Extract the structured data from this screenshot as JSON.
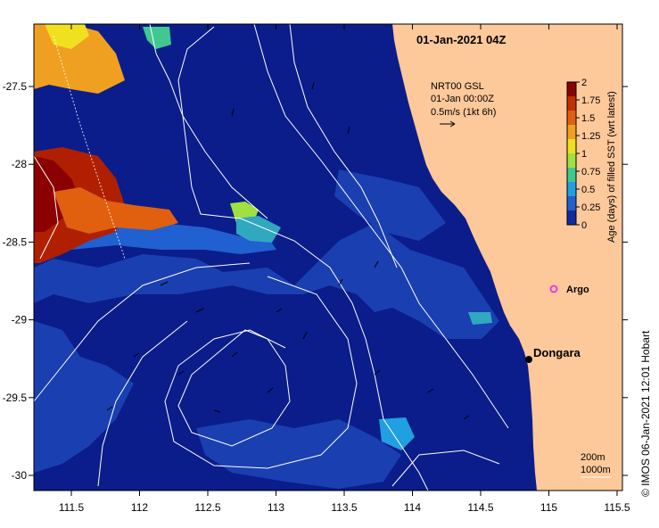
{
  "map": {
    "title": "01-Jan-2021 04Z",
    "legend": {
      "line1": "NRT00 GSL",
      "line2": "01-Jan 00:00Z",
      "line3": "0.5m/s (1kt 6h)"
    },
    "colorbar": {
      "label": "Age (days) of filled SST (wrt latest)",
      "ticks": [
        "2",
        "1.75",
        "1.5",
        "1.25",
        "1",
        "0.75",
        "0.5",
        "0.25",
        "0"
      ],
      "colors": [
        "#8b0000",
        "#c03000",
        "#e06010",
        "#f0a020",
        "#f0e020",
        "#a0e040",
        "#40c890",
        "#20a0e0",
        "#2060d0",
        "#102aa0"
      ]
    },
    "x_axis": {
      "ticks": [
        "111.5",
        "112",
        "112.5",
        "113",
        "113.5",
        "114",
        "114.5",
        "115",
        "115.5"
      ]
    },
    "y_axis": {
      "ticks": [
        "-27.5",
        "-28",
        "-28.5",
        "-29",
        "-29.5",
        "-30"
      ]
    },
    "places": {
      "argo": "Argo",
      "dongara": "Dongara"
    },
    "bathymetry": {
      "line1": "200m",
      "line2": "1000m"
    },
    "credit": "© IMOS 06-Jan-2021 12:01 Hobart",
    "colors": {
      "ocean": "#0a1d8a",
      "ocean_mid": "#1a3fb0",
      "land": "#fdc89a",
      "contour": "#ffffff",
      "argo": "#e040e0"
    }
  }
}
